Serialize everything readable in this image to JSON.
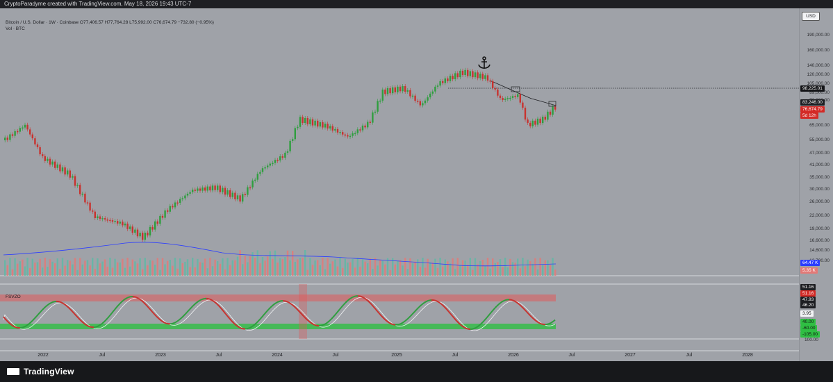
{
  "header": {
    "attribution": "CryptoParadyme created with TradingView.com, May 18, 2026 19:43 UTC-7"
  },
  "legend": {
    "symbol_line": "Bitcoin / U.S. Dollar · 1W · Coinbase  O77,406.57  H77,764.28  L75,992.00  C76,674.79  −732.80 (−0.95%)",
    "volume_line": "Vol · BTC"
  },
  "price_axis": {
    "currency": "USD",
    "ticks": [
      "190,000.00",
      "160,000.00",
      "140,000.00",
      "120,000.00",
      "105,000.00",
      "89,000.00",
      "76,000.00",
      "65,000.00",
      "55,000.00",
      "47,000.00",
      "41,000.00",
      "35,000.00",
      "30,000.00",
      "26,000.00",
      "22,000.00",
      "19,000.00",
      "16,600.00",
      "14,600.00",
      "12,700.00"
    ],
    "tags": {
      "level": "98,225.01",
      "ma": "83,246.00",
      "last": "76,674.79",
      "countdown": "5d 12h",
      "vol1": "64.47 K",
      "vol2": "5.35 K"
    }
  },
  "oscillator": {
    "name": "FSVZO",
    "tags": [
      "51.16",
      "51.16",
      "47.93",
      "46.20",
      "3.95",
      "40.00",
      "-60.00",
      "-105.00"
    ],
    "top_label": "100.00"
  },
  "time_axis": {
    "ticks": [
      "2022",
      "Jul",
      "2023",
      "Jul",
      "2024",
      "Jul",
      "2025",
      "Jul",
      "2026",
      "Jul",
      "2027",
      "Jul",
      "2028"
    ]
  },
  "footer": {
    "brand": "TradingView"
  },
  "colors": {
    "background": "#9fa2a8",
    "up": "#2e9e3e",
    "down": "#c8322e",
    "volume_up": "#5fb8a6",
    "volume_down": "#e27a78",
    "ma_line": "#2b3dff",
    "level_tag": "#131417",
    "last_tag": "#d32a26"
  }
}
